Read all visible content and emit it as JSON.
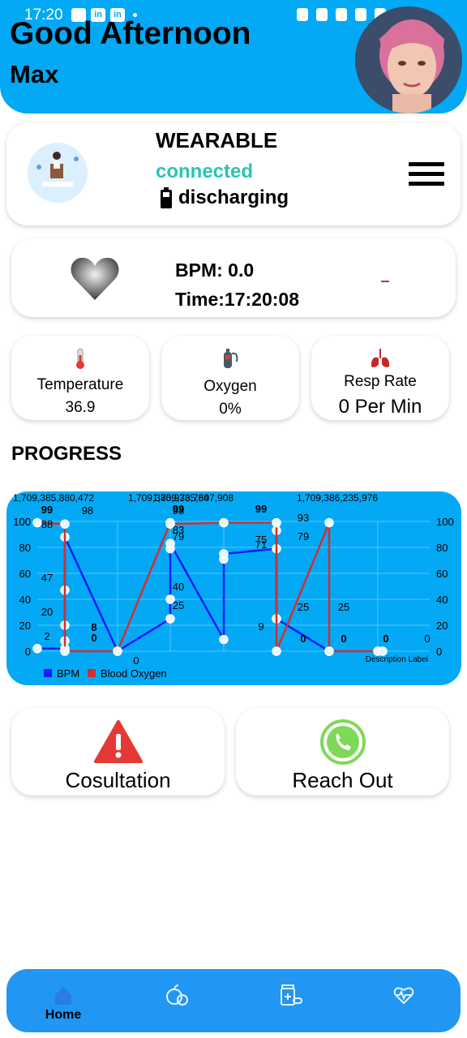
{
  "status_bar": {
    "time": "17:20"
  },
  "header": {
    "greeting": "Good Afternoon",
    "username": "Max"
  },
  "wearable": {
    "title": "WEARABLE",
    "connection": "connected",
    "battery": "discharging"
  },
  "heart_rate": {
    "bpm_label": "BPM: 0.0",
    "time_label": "Time:17:20:08"
  },
  "stats": [
    {
      "label": "Temperature",
      "value": "36.9",
      "icon": "thermometer-icon"
    },
    {
      "label": "Oxygen",
      "value": "0%",
      "icon": "oxygen-tank-icon"
    },
    {
      "label": "Resp Rate",
      "value": "0 Per Min",
      "icon": "lungs-icon"
    }
  ],
  "progress": {
    "title": "PROGRESS"
  },
  "chart_data": {
    "type": "line",
    "title": "",
    "description": "Description Label",
    "x_labels_top": [
      "1,709,385,880,472",
      "1,709,385,847,908",
      "1,709,385,973,760",
      "1,709,386,235,976"
    ],
    "ylim": [
      0,
      100
    ],
    "yticks": [
      0,
      20,
      40,
      60,
      80,
      100
    ],
    "legend": [
      "BPM",
      "Blood Oxygen"
    ],
    "series": [
      {
        "name": "BPM",
        "color": "#1a1aff",
        "x": [
          0,
          1,
          1,
          1,
          1,
          1,
          2,
          3,
          3,
          3,
          3,
          4,
          4,
          4,
          5,
          5,
          5,
          5,
          6,
          6,
          6
        ],
        "y": [
          2,
          2,
          8,
          20,
          47,
          88,
          0,
          25,
          40,
          79,
          83,
          9,
          71,
          75,
          79,
          93,
          25,
          25,
          0,
          0,
          0
        ]
      },
      {
        "name": "Blood Oxygen",
        "color": "#d32f2f",
        "x": [
          0,
          1,
          1,
          2,
          3,
          3,
          4,
          5,
          5,
          6,
          6,
          7,
          8
        ],
        "y": [
          99,
          98,
          0,
          0,
          99,
          98,
          99,
          99,
          0,
          99,
          0,
          0,
          0
        ]
      }
    ],
    "point_labels": [
      "99",
      "98",
      "88",
      "47",
      "20",
      "8",
      "2",
      "0",
      "0",
      "99",
      "98",
      "83",
      "79",
      "40",
      "25",
      "9",
      "75",
      "71",
      "99",
      "93",
      "79",
      "25",
      "25",
      "0",
      "0",
      "0",
      "0"
    ]
  },
  "actions": [
    {
      "label": "Cosultation",
      "icon": "alert-icon"
    },
    {
      "label": "Reach Out",
      "icon": "phone-icon"
    }
  ],
  "nav": [
    {
      "label": "Home",
      "icon": "home-icon"
    },
    {
      "label": "",
      "icon": "nutrition-icon"
    },
    {
      "label": "",
      "icon": "medication-icon"
    },
    {
      "label": "",
      "icon": "fitness-icon"
    }
  ]
}
